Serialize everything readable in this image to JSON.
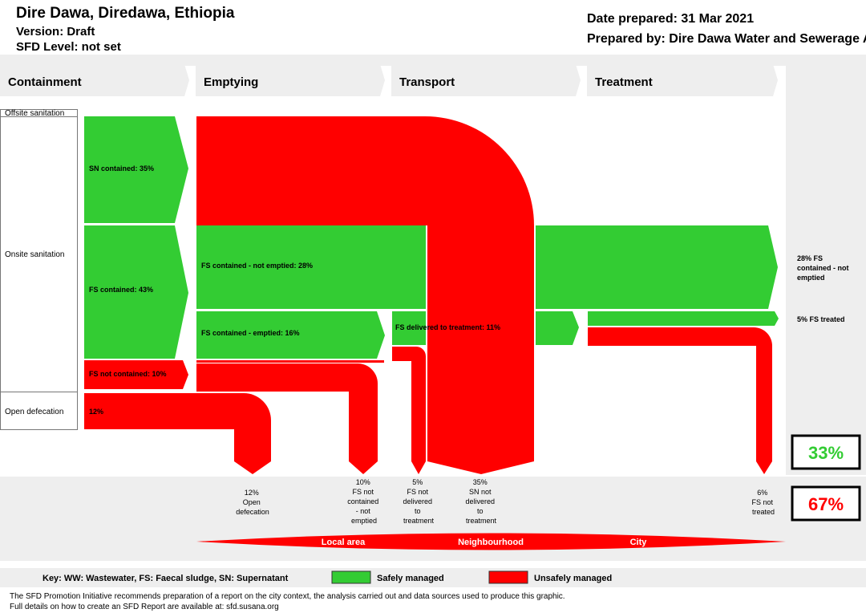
{
  "header": {
    "title": "Dire Dawa, Diredawa, Ethiopia",
    "version": "Version: Draft",
    "sfd_level": "SFD Level: not set",
    "date_prepared": "Date prepared: 31 Mar 2021",
    "prepared_by": "Prepared by: Dire Dawa Water and Sewerage A"
  },
  "stages": [
    "Containment",
    "Emptying",
    "Transport",
    "Treatment"
  ],
  "containment_types": {
    "offsite": "Offsite sanitation",
    "onsite": "Onsite sanitation",
    "open": "Open defecation"
  },
  "flows": {
    "sn_contained": "SN contained: 35%",
    "fs_contained": "FS contained: 43%",
    "fs_not_contained": "FS not contained: 10%",
    "open_defecation": "12%",
    "fs_not_emptied": "FS contained - not emptied: 28%",
    "fs_emptied": "FS contained - emptied: 16%",
    "fs_delivered": "FS delivered to treatment: 11%"
  },
  "outcomes": {
    "not_emptied": [
      "28% FS",
      "contained - not",
      "emptied"
    ],
    "treated": "5% FS treated"
  },
  "bottom_labels": {
    "open_def": [
      "12%",
      "Open",
      "defecation"
    ],
    "not_contained": [
      "10%",
      "FS not",
      "contained",
      "- not",
      "emptied"
    ],
    "not_delivered_fs": [
      "5%",
      "FS not",
      "delivered",
      "to",
      "treatment"
    ],
    "not_delivered_sn": [
      "35%",
      "SN not",
      "delivered",
      "to",
      "treatment"
    ],
    "not_treated": [
      "6%",
      "FS not",
      "treated"
    ]
  },
  "percent_safe": "33%",
  "percent_unsafe": "67%",
  "colors": {
    "safe": "#33cc33",
    "unsafe": "#ff0000",
    "grey": "#eeeeee"
  },
  "scale": {
    "local": "Local area",
    "neighbourhood": "Neighbourhood",
    "city": "City"
  },
  "key": {
    "text": "Key: WW: Wastewater, FS: Faecal sludge, SN: Supernatant",
    "safe": "Safely managed",
    "unsafe": "Unsafely managed"
  },
  "footer": {
    "line1": "The SFD Promotion Initiative recommends preparation of a report on the city context, the analysis carried out and data sources used to produce this graphic.",
    "line2": "Full details on how to create an SFD Report are available at: sfd.susana.org"
  }
}
